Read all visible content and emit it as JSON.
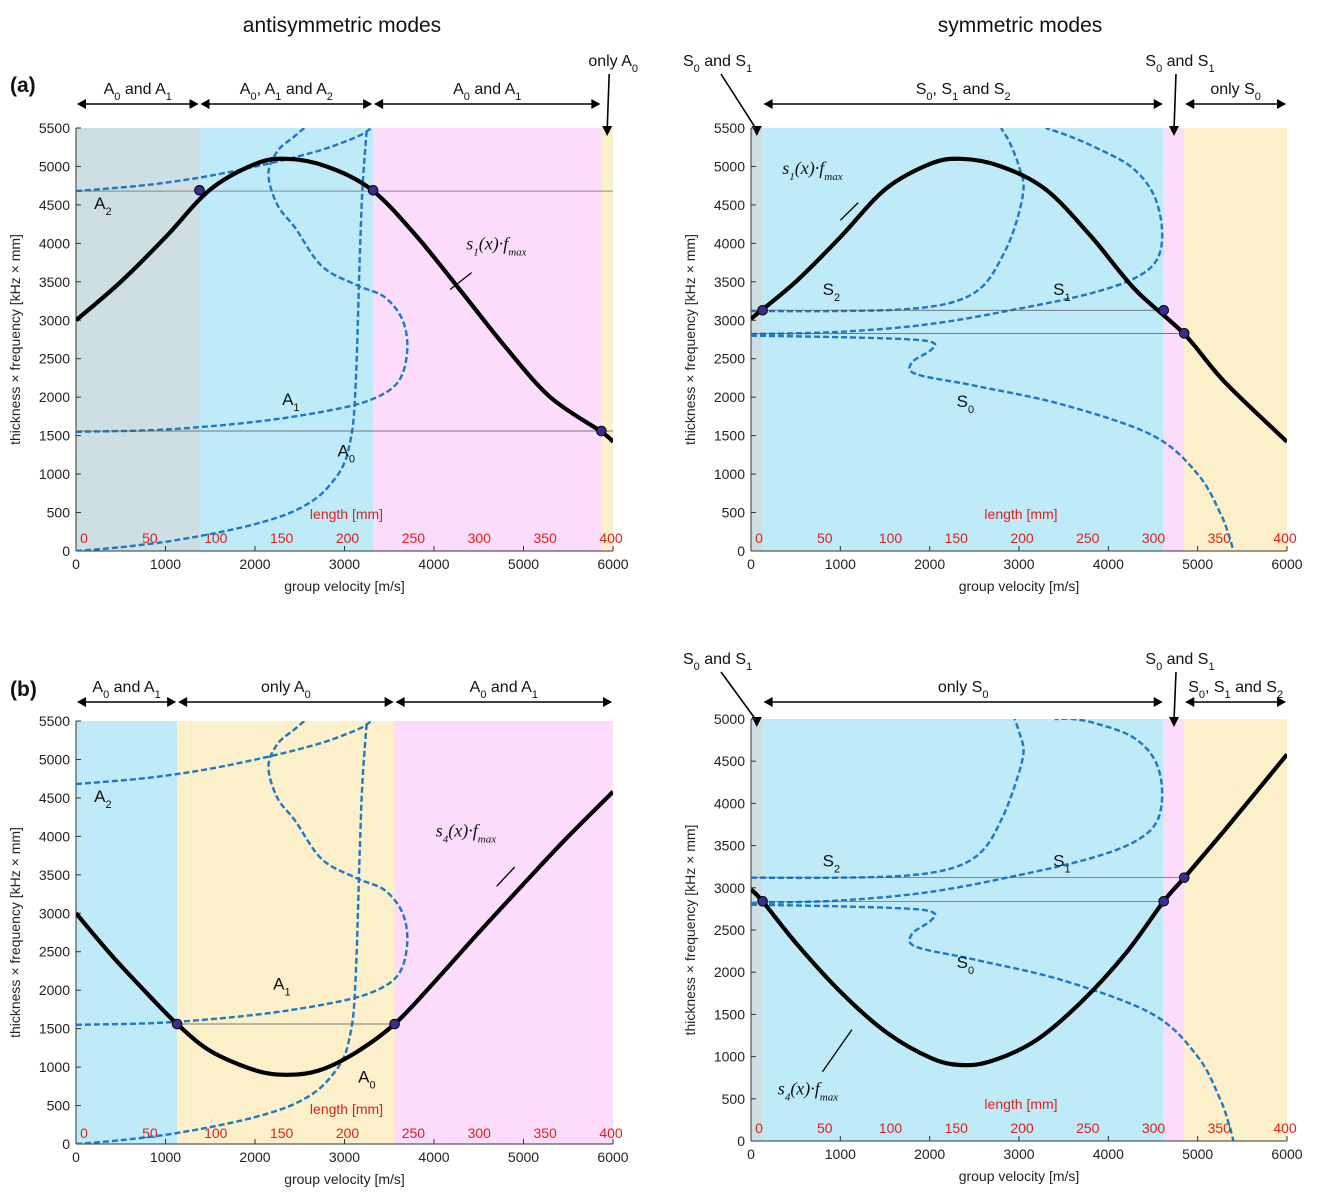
{
  "headings": {
    "left": "antisymmetric modes",
    "right": "symmetric modes"
  },
  "panel_labels": [
    "(a)",
    "(b)"
  ],
  "colors": {
    "gray": "#cddfe3",
    "cyan": "#bfeaf7",
    "pink": "#fcdcfb",
    "yellow": "#fbf0c9",
    "dashed": "#1f78c0",
    "solid": "#000000",
    "marker": "#3b2d8f",
    "length_axis": "#e0201c"
  },
  "chart_data": [
    {
      "id": "a-anti",
      "type": "line",
      "panel": "(a)",
      "heading": "antisymmetric modes",
      "xlabel": "group velocity [m/s]",
      "ylabel": "thickness × frequency [kHz × mm]",
      "xlim": [
        0,
        6000
      ],
      "ylim": [
        0,
        5500
      ],
      "xticks": [
        0,
        1000,
        2000,
        3000,
        4000,
        5000,
        6000
      ],
      "yticks": [
        0,
        500,
        1000,
        1500,
        2000,
        2500,
        3000,
        3500,
        4000,
        4500,
        5000,
        5500
      ],
      "length_axis": {
        "label": "length [mm]",
        "ticks": [
          0,
          50,
          100,
          150,
          200,
          250,
          300,
          350,
          400
        ]
      },
      "regions": [
        {
          "x0": 0,
          "x1": 1380,
          "color": "gray",
          "label": [
            "A",
            "0",
            " and A",
            "1"
          ]
        },
        {
          "x0": 1380,
          "x1": 3320,
          "color": "cyan",
          "label": [
            "A",
            "0",
            ", A",
            "1",
            " and A",
            "2"
          ]
        },
        {
          "x0": 3320,
          "x1": 5870,
          "color": "pink",
          "label": [
            "A",
            "0",
            " and A",
            "1"
          ]
        },
        {
          "x0": 5870,
          "x1": 6000,
          "color": "yellow",
          "label": [
            "only A",
            "0"
          ]
        }
      ],
      "series": [
        {
          "name": "A0",
          "style": "dashed",
          "x": [
            0,
            500,
            1000,
            1500,
            2000,
            2400,
            2700,
            2900,
            3000,
            3050,
            3100,
            3130,
            3150,
            3170,
            3200,
            3250
          ],
          "y": [
            0,
            50,
            120,
            220,
            350,
            500,
            700,
            950,
            1150,
            1350,
            1700,
            2300,
            3000,
            3800,
            4700,
            5500
          ]
        },
        {
          "name": "A1",
          "style": "dashed",
          "x": [
            0,
            1000,
            2000,
            2800,
            3300,
            3600,
            3700,
            3650,
            3450,
            3150,
            2750,
            2450,
            2250,
            2150,
            2250,
            2450,
            2600
          ],
          "y": [
            1550,
            1580,
            1680,
            1820,
            1970,
            2200,
            2600,
            3000,
            3300,
            3450,
            3700,
            4200,
            4500,
            4900,
            5200,
            5400,
            5550
          ]
        },
        {
          "name": "A2",
          "style": "dashed",
          "x": [
            0,
            800,
            1500,
            2200,
            2700,
            3000,
            3200,
            3300
          ],
          "y": [
            4680,
            4760,
            4880,
            5050,
            5200,
            5320,
            5420,
            5500
          ]
        },
        {
          "name": "",
          "style": "solid",
          "x": [
            0,
            500,
            1000,
            1500,
            2000,
            2350,
            2800,
            3300,
            3800,
            4300,
            4800,
            5300,
            5870,
            6000
          ],
          "y": [
            3000,
            3500,
            4080,
            4700,
            5030,
            5100,
            5000,
            4700,
            4100,
            3380,
            2650,
            2000,
            1550,
            1420
          ]
        }
      ],
      "annotations": {
        "function": [
          "s",
          "1",
          "(x)·f",
          "max"
        ],
        "labels": [
          "A2",
          "A1",
          "A0"
        ]
      }
    },
    {
      "id": "a-sym",
      "type": "line",
      "panel": "(a)",
      "heading": "symmetric modes",
      "xlabel": "group velocity [m/s]",
      "ylabel": "thickness × frequency [kHz × mm]",
      "xlim": [
        0,
        6000
      ],
      "ylim": [
        0,
        5500
      ],
      "xticks": [
        0,
        1000,
        2000,
        3000,
        4000,
        5000,
        6000
      ],
      "yticks": [
        0,
        500,
        1000,
        1500,
        2000,
        2500,
        3000,
        3500,
        4000,
        4500,
        5000,
        5500
      ],
      "length_axis": {
        "label": "length [mm]",
        "ticks": [
          0,
          50,
          100,
          150,
          200,
          250,
          300,
          350,
          400
        ]
      },
      "regions": [
        {
          "x0": 0,
          "x1": 130,
          "color": "gray",
          "label": [
            "S",
            "0",
            " and S",
            "1"
          ]
        },
        {
          "x0": 130,
          "x1": 4620,
          "color": "cyan",
          "label": [
            "S",
            "0",
            ", S",
            "1",
            " and S",
            "2"
          ]
        },
        {
          "x0": 4620,
          "x1": 4850,
          "color": "pink",
          "label": [
            "S",
            "0",
            " and S",
            "1"
          ]
        },
        {
          "x0": 4850,
          "x1": 6000,
          "color": "yellow",
          "label": [
            "only S",
            "0"
          ]
        }
      ],
      "series": [
        {
          "name": "S0",
          "style": "dashed",
          "x": [
            0,
            1000,
            1800,
            2050,
            2000,
            1800,
            1850,
            2500,
            3500,
            4500,
            5000,
            5250,
            5350,
            5400
          ],
          "y": [
            2800,
            2780,
            2750,
            2700,
            2600,
            2450,
            2300,
            2150,
            1900,
            1500,
            1000,
            500,
            200,
            0
          ]
        },
        {
          "name": "S1",
          "style": "dashed",
          "x": [
            0,
            1000,
            2000,
            3000,
            3800,
            4300,
            4550,
            4600,
            4500,
            4250,
            3850,
            3550,
            3300
          ],
          "y": [
            2820,
            2850,
            2950,
            3150,
            3350,
            3550,
            3800,
            4200,
            4650,
            5000,
            5250,
            5400,
            5500
          ]
        },
        {
          "name": "S2",
          "style": "dashed",
          "x": [
            0,
            1000,
            1800,
            2300,
            2600,
            2800,
            2950,
            3050,
            3000,
            2900,
            2800
          ],
          "y": [
            3120,
            3120,
            3150,
            3250,
            3450,
            3800,
            4200,
            4700,
            5000,
            5300,
            5500
          ]
        },
        {
          "name": "",
          "style": "solid",
          "x": [
            0,
            500,
            1000,
            1500,
            2000,
            2350,
            2800,
            3300,
            3800,
            4300,
            4850,
            5300,
            6000
          ],
          "y": [
            3020,
            3500,
            4080,
            4700,
            5030,
            5100,
            5000,
            4700,
            4100,
            3400,
            2820,
            2200,
            1420
          ]
        }
      ],
      "annotations": {
        "function": [
          "s",
          "1",
          "(x)·f",
          "max"
        ],
        "labels": [
          "S2",
          "S1",
          "S0"
        ]
      }
    },
    {
      "id": "b-anti",
      "type": "line",
      "panel": "(b)",
      "heading": "antisymmetric modes",
      "xlabel": "group velocity [m/s]",
      "ylabel": "thickness × frequency [kHz × mm]",
      "xlim": [
        0,
        6000
      ],
      "ylim": [
        0,
        5500
      ],
      "xticks": [
        0,
        1000,
        2000,
        3000,
        4000,
        5000,
        6000
      ],
      "yticks": [
        0,
        500,
        1000,
        1500,
        2000,
        2500,
        3000,
        3500,
        4000,
        4500,
        5000,
        5500
      ],
      "length_axis": {
        "label": "length [mm]",
        "ticks": [
          0,
          50,
          100,
          150,
          200,
          250,
          300,
          350,
          400
        ]
      },
      "regions": [
        {
          "x0": 0,
          "x1": 1130,
          "color": "cyan",
          "label": [
            "A",
            "0",
            " and A",
            "1"
          ]
        },
        {
          "x0": 1130,
          "x1": 3560,
          "color": "yellow",
          "label": [
            "only A",
            "0"
          ]
        },
        {
          "x0": 3560,
          "x1": 6000,
          "color": "pink",
          "label": [
            "A",
            "0",
            " and A",
            "1"
          ]
        }
      ],
      "series": [
        {
          "name": "A0",
          "style": "dashed",
          "x": [
            0,
            500,
            1000,
            1500,
            2000,
            2400,
            2700,
            2900,
            3000,
            3050,
            3100,
            3130,
            3150,
            3170,
            3200,
            3250
          ],
          "y": [
            0,
            50,
            120,
            220,
            350,
            500,
            700,
            950,
            1150,
            1350,
            1700,
            2300,
            3000,
            3800,
            4700,
            5500
          ]
        },
        {
          "name": "A1",
          "style": "dashed",
          "x": [
            0,
            1000,
            2000,
            2800,
            3300,
            3600,
            3700,
            3650,
            3450,
            3150,
            2750,
            2450,
            2250,
            2150,
            2250,
            2450,
            2600
          ],
          "y": [
            1550,
            1580,
            1680,
            1820,
            1970,
            2200,
            2600,
            3000,
            3300,
            3450,
            3700,
            4200,
            4500,
            4900,
            5200,
            5400,
            5550
          ]
        },
        {
          "name": "A2",
          "style": "dashed",
          "x": [
            0,
            800,
            1500,
            2200,
            2700,
            3000,
            3200,
            3300
          ],
          "y": [
            4680,
            4760,
            4880,
            5050,
            5200,
            5320,
            5420,
            5500
          ]
        },
        {
          "name": "",
          "style": "solid",
          "x": [
            0,
            400,
            800,
            1130,
            1500,
            2000,
            2350,
            2700,
            3100,
            3560,
            4000,
            4500,
            5000,
            5500,
            6000
          ],
          "y": [
            3000,
            2450,
            1950,
            1560,
            1210,
            960,
            900,
            950,
            1170,
            1560,
            2100,
            2750,
            3380,
            4000,
            4580
          ]
        }
      ],
      "annotations": {
        "function": [
          "s",
          "4",
          "(x)·f",
          "max"
        ],
        "labels": [
          "A2",
          "A1",
          "A0"
        ]
      }
    },
    {
      "id": "b-sym",
      "type": "line",
      "panel": "(b)",
      "heading": "symmetric modes",
      "xlabel": "group velocity [m/s]",
      "ylabel": "thickness × frequency [kHz × mm]",
      "xlim": [
        0,
        6000
      ],
      "ylim": [
        0,
        5000
      ],
      "xticks": [
        0,
        1000,
        2000,
        3000,
        4000,
        5000,
        6000
      ],
      "yticks": [
        0,
        500,
        1000,
        1500,
        2000,
        2500,
        3000,
        3500,
        4000,
        4500,
        5000
      ],
      "length_axis": {
        "label": "length [mm]",
        "ticks": [
          0,
          50,
          100,
          150,
          200,
          250,
          300,
          350,
          400
        ]
      },
      "regions": [
        {
          "x0": 0,
          "x1": 130,
          "color": "gray",
          "label": [
            "S",
            "0",
            " and S",
            "1"
          ]
        },
        {
          "x0": 130,
          "x1": 4620,
          "color": "cyan",
          "label": [
            "only S",
            "0"
          ]
        },
        {
          "x0": 4620,
          "x1": 4850,
          "color": "pink",
          "label": [
            "S",
            "0",
            " and S",
            "1"
          ]
        },
        {
          "x0": 4850,
          "x1": 6000,
          "color": "yellow",
          "label": [
            "S",
            "0",
            ", S",
            "1",
            " and S",
            "2"
          ]
        }
      ],
      "series": [
        {
          "name": "S0",
          "style": "dashed",
          "x": [
            0,
            1000,
            1800,
            2050,
            2000,
            1800,
            1850,
            2500,
            3500,
            4500,
            5000,
            5250,
            5350,
            5400
          ],
          "y": [
            2800,
            2780,
            2750,
            2700,
            2600,
            2450,
            2300,
            2150,
            1900,
            1500,
            1000,
            500,
            200,
            0
          ]
        },
        {
          "name": "S1",
          "style": "dashed",
          "x": [
            0,
            1000,
            2000,
            3000,
            3800,
            4300,
            4550,
            4600,
            4500,
            4250,
            3850,
            3600,
            3400
          ],
          "y": [
            2820,
            2850,
            2950,
            3150,
            3350,
            3550,
            3800,
            4200,
            4550,
            4800,
            4950,
            5000,
            5000
          ]
        },
        {
          "name": "S2",
          "style": "dashed",
          "x": [
            0,
            1000,
            1800,
            2300,
            2600,
            2800,
            2950,
            3050,
            3000,
            2950
          ],
          "y": [
            3120,
            3120,
            3150,
            3250,
            3450,
            3800,
            4200,
            4600,
            4850,
            5000
          ]
        },
        {
          "name": "",
          "style": "solid",
          "x": [
            0,
            130,
            500,
            1000,
            1500,
            2000,
            2350,
            2700,
            3200,
            3700,
            4200,
            4620,
            4850,
            5300,
            6000
          ],
          "y": [
            2980,
            2840,
            2350,
            1770,
            1300,
            990,
            900,
            950,
            1200,
            1650,
            2230,
            2840,
            3120,
            3680,
            4580
          ]
        }
      ],
      "annotations": {
        "function": [
          "s",
          "4",
          "(x)·f",
          "max"
        ],
        "labels": [
          "S2",
          "S1",
          "S0"
        ]
      }
    }
  ]
}
